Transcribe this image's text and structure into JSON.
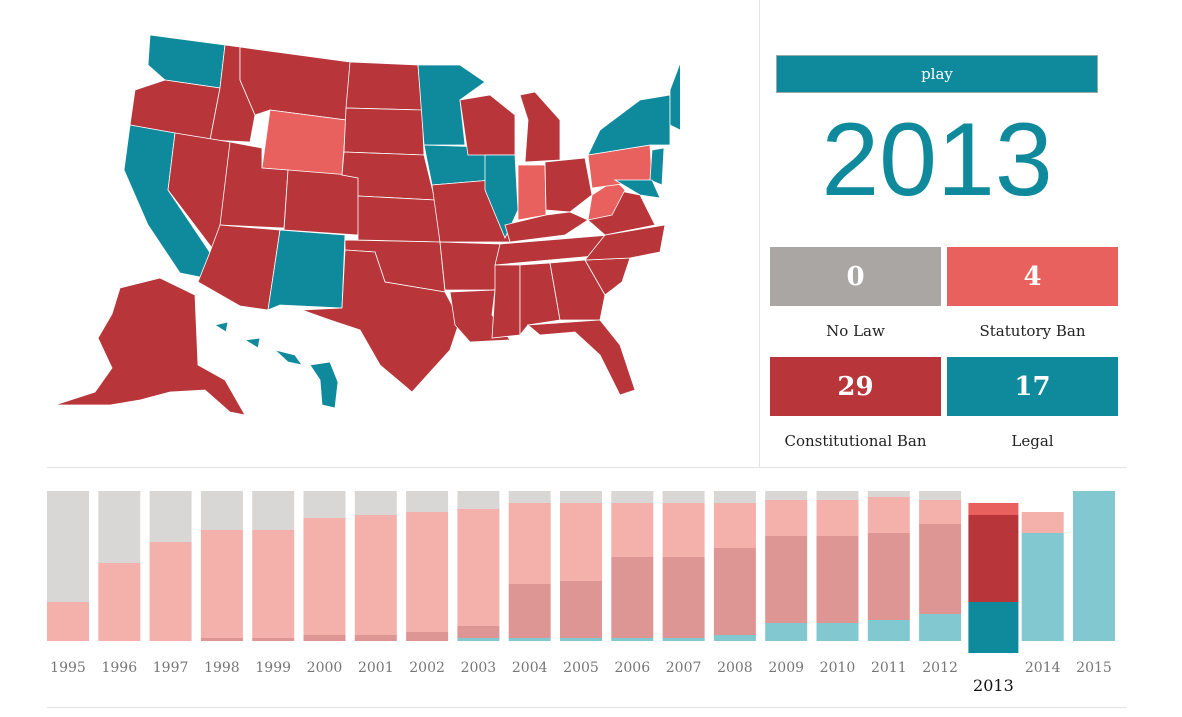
{
  "controls": {
    "play_label": "play",
    "year": "2013"
  },
  "colors": {
    "no_law": "#aaa6a3",
    "statutory_ban": "#e8615e",
    "constitutional_ban": "#b83539",
    "legal": "#0f8a9d",
    "no_law_light": "#d9d7d5",
    "statutory_light": "#f4b0ab",
    "constitutional_light": "#de9694",
    "legal_light": "#82c8d1"
  },
  "summary": [
    {
      "value": "0",
      "label": "No Law"
    },
    {
      "value": "4",
      "label": "Statutory Ban"
    },
    {
      "value": "29",
      "label": "Constitutional Ban"
    },
    {
      "value": "17",
      "label": "Legal"
    }
  ],
  "chart_data": {
    "type": "bar",
    "stacked": true,
    "categories": [
      "1995",
      "1996",
      "1997",
      "1998",
      "1999",
      "2000",
      "2001",
      "2002",
      "2003",
      "2004",
      "2005",
      "2006",
      "2007",
      "2008",
      "2009",
      "2010",
      "2011",
      "2012",
      "2013",
      "2014",
      "2015"
    ],
    "selected": "2013",
    "series": [
      {
        "name": "Legal",
        "values": [
          0,
          0,
          0,
          0,
          0,
          0,
          0,
          0,
          1,
          1,
          1,
          1,
          1,
          2,
          6,
          6,
          7,
          9,
          17,
          36,
          50
        ]
      },
      {
        "name": "Constitutional Ban",
        "values": [
          0,
          0,
          0,
          1,
          1,
          2,
          2,
          3,
          4,
          18,
          19,
          27,
          27,
          29,
          29,
          29,
          29,
          30,
          29,
          0,
          0
        ]
      },
      {
        "name": "Statutory Ban",
        "values": [
          13,
          26,
          33,
          36,
          36,
          39,
          40,
          40,
          39,
          27,
          26,
          18,
          18,
          15,
          12,
          12,
          12,
          8,
          4,
          7,
          0
        ]
      },
      {
        "name": "No Law",
        "values": [
          37,
          24,
          17,
          13,
          13,
          9,
          8,
          7,
          6,
          4,
          4,
          4,
          4,
          4,
          3,
          3,
          2,
          3,
          0,
          0,
          0
        ]
      }
    ]
  }
}
